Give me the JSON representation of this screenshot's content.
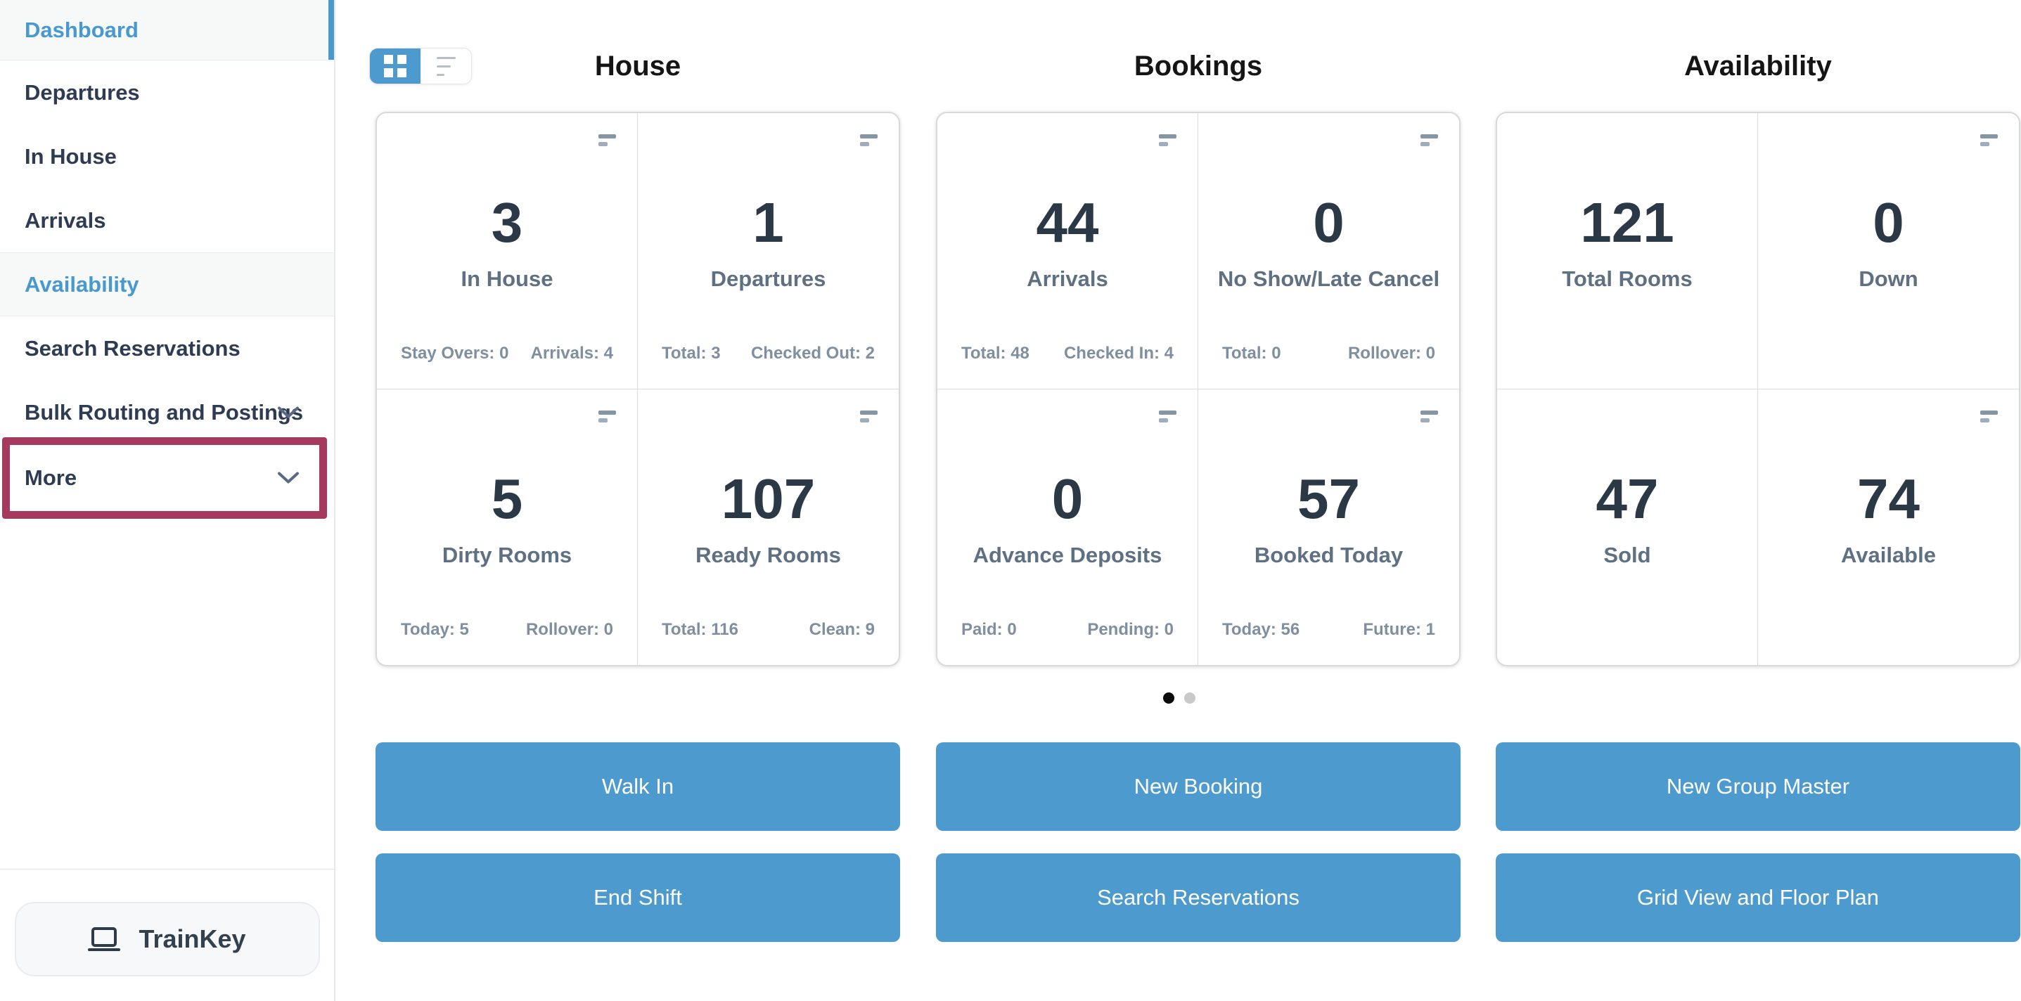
{
  "colors": {
    "accent_blue": "#4D9BCE",
    "link_blue": "#4799CF",
    "annotation_red": "#A53A5E",
    "sidebar_text": "#2D3C52",
    "card_number": "#2B3947",
    "card_label": "#5E7081",
    "card_footer": "#7F8FA0",
    "section_title": "#151515",
    "dot_active": "#0B0B0B",
    "dot_inactive": "#C9C9C9"
  },
  "sidebar": {
    "items": [
      {
        "label": "Dashboard",
        "active": true,
        "highlighted": false,
        "chevron": false,
        "annotated": false
      },
      {
        "label": "Departures",
        "active": false,
        "highlighted": false,
        "chevron": false,
        "annotated": false
      },
      {
        "label": "In House",
        "active": false,
        "highlighted": false,
        "chevron": false,
        "annotated": false
      },
      {
        "label": "Arrivals",
        "active": false,
        "highlighted": false,
        "chevron": false,
        "annotated": false
      },
      {
        "label": "Availability",
        "active": false,
        "highlighted": true,
        "chevron": false,
        "annotated": false
      },
      {
        "label": "Search Reservations",
        "active": false,
        "highlighted": false,
        "chevron": false,
        "annotated": false
      },
      {
        "label": "Bulk Routing and Postings",
        "active": false,
        "highlighted": false,
        "chevron": true,
        "annotated": false
      },
      {
        "label": "More",
        "active": false,
        "highlighted": false,
        "chevron": true,
        "annotated": true
      }
    ],
    "trainkey": {
      "label": "TrainKey"
    }
  },
  "view_toggle": {
    "options": [
      "grid",
      "list"
    ],
    "selected": "grid"
  },
  "sections": [
    {
      "title": "House",
      "cards": [
        {
          "value": "3",
          "label": "In House",
          "footer_left": "Stay Overs: 0",
          "footer_right": "Arrivals: 4",
          "has_menu": true
        },
        {
          "value": "1",
          "label": "Departures",
          "footer_left": "Total: 3",
          "footer_right": "Checked Out: 2",
          "has_menu": true
        },
        {
          "value": "5",
          "label": "Dirty Rooms",
          "footer_left": "Today: 5",
          "footer_right": "Rollover: 0",
          "has_menu": true
        },
        {
          "value": "107",
          "label": "Ready Rooms",
          "footer_left": "Total: 116",
          "footer_right": "Clean: 9",
          "has_menu": true
        }
      ],
      "buttons": [
        "Walk In",
        "End Shift"
      ]
    },
    {
      "title": "Bookings",
      "cards": [
        {
          "value": "44",
          "label": "Arrivals",
          "footer_left": "Total: 48",
          "footer_right": "Checked In: 4",
          "has_menu": true
        },
        {
          "value": "0",
          "label": "No Show/Late Cancel",
          "footer_left": "Total: 0",
          "footer_right": "Rollover: 0",
          "has_menu": true
        },
        {
          "value": "0",
          "label": "Advance Deposits",
          "footer_left": "Paid: 0",
          "footer_right": "Pending: 0",
          "has_menu": true
        },
        {
          "value": "57",
          "label": "Booked Today",
          "footer_left": "Today: 56",
          "footer_right": "Future: 1",
          "has_menu": true
        }
      ],
      "buttons": [
        "New Booking",
        "Search Reservations"
      ]
    },
    {
      "title": "Availability",
      "cards": [
        {
          "value": "121",
          "label": "Total Rooms",
          "footer_left": "",
          "footer_right": "",
          "has_menu": false
        },
        {
          "value": "0",
          "label": "Down",
          "footer_left": "",
          "footer_right": "",
          "has_menu": true
        },
        {
          "value": "47",
          "label": "Sold",
          "footer_left": "",
          "footer_right": "",
          "has_menu": false
        },
        {
          "value": "74",
          "label": "Available",
          "footer_left": "",
          "footer_right": "",
          "has_menu": true
        }
      ],
      "buttons": [
        "New Group Master",
        "Grid View and Floor Plan"
      ]
    }
  ],
  "pagination": {
    "dot_count": 2,
    "active_index": 0
  }
}
